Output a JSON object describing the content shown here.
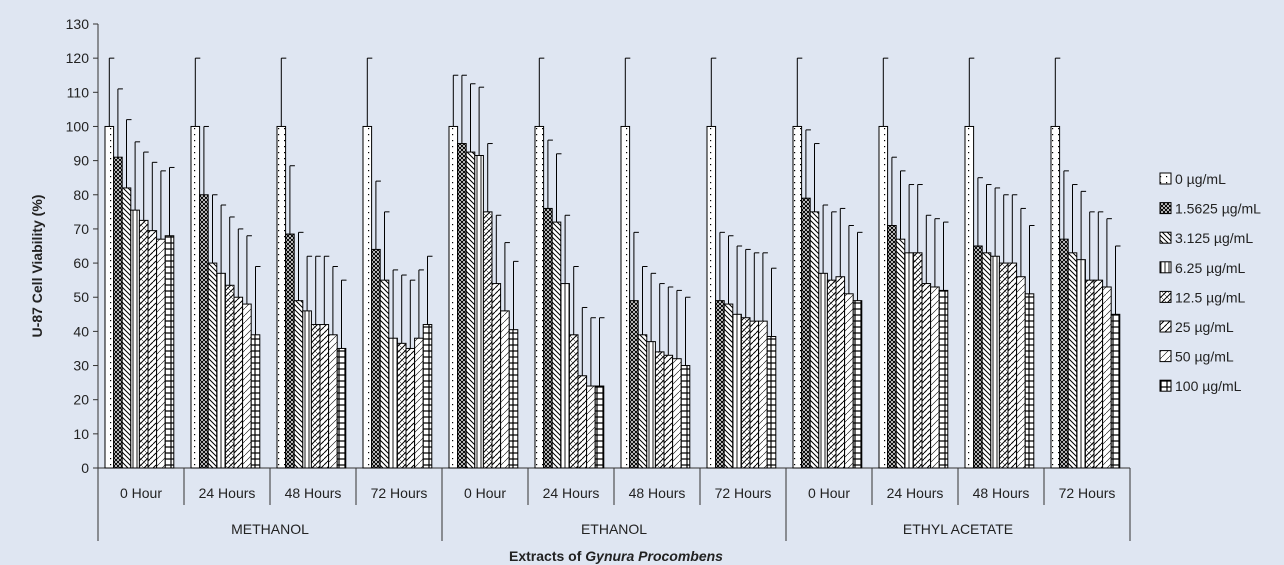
{
  "chart_data": {
    "type": "bar",
    "ylabel": "U-87 Cell Viability (%)",
    "xlabel": "Extracts of",
    "xlabel_italic": "Gynura Procombens",
    "ylim": [
      0,
      130
    ],
    "yticks": [
      0,
      10,
      20,
      30,
      40,
      50,
      60,
      70,
      80,
      90,
      100,
      110,
      120,
      130
    ],
    "legend_position": "right",
    "groups": [
      {
        "name": "METHANOL",
        "categories": [
          "0 Hour",
          "24 Hours",
          "48 Hours",
          "72 Hours"
        ]
      },
      {
        "name": "ETHANOL",
        "categories": [
          "0 Hour",
          "24 Hours",
          "48 Hours",
          "72 Hours"
        ]
      },
      {
        "name": "ETHYL ACETATE",
        "categories": [
          "0 Hour",
          "24 Hours",
          "48 Hours",
          "72 Hours"
        ]
      }
    ],
    "series": [
      {
        "name": "0 µg/mL",
        "values": [
          100,
          100,
          100,
          100,
          100,
          100,
          100,
          100,
          100,
          100,
          100,
          100
        ],
        "errors": [
          20,
          20,
          20,
          20,
          15,
          20,
          20,
          20,
          20,
          20,
          20,
          20
        ]
      },
      {
        "name": "1.5625 µg/mL",
        "values": [
          91,
          80,
          68.5,
          64,
          95,
          76,
          49,
          49,
          79,
          71,
          65,
          67
        ],
        "errors": [
          20,
          20,
          20,
          20,
          20,
          20,
          20,
          20,
          20,
          20,
          20,
          20
        ]
      },
      {
        "name": "3.125 µg/mL",
        "values": [
          82,
          60,
          49,
          55,
          92.5,
          72,
          39,
          48,
          75,
          67,
          63,
          63
        ],
        "errors": [
          20,
          20,
          20,
          20,
          20,
          20,
          20,
          20,
          20,
          20,
          20,
          20
        ]
      },
      {
        "name": "6.25 µg/mL",
        "values": [
          75.5,
          57,
          46,
          38,
          91.5,
          54,
          37,
          45,
          57,
          63,
          62,
          61
        ],
        "errors": [
          20,
          20,
          16,
          20,
          20,
          20,
          20,
          20,
          20,
          20,
          20,
          20
        ]
      },
      {
        "name": "12.5 µg/mL",
        "values": [
          72.5,
          53.5,
          42,
          36.5,
          75,
          39,
          34,
          44,
          55,
          63,
          60,
          55
        ],
        "errors": [
          20,
          20,
          20,
          20,
          20,
          20,
          20,
          20,
          20,
          20,
          20,
          20
        ]
      },
      {
        "name": "25 µg/mL",
        "values": [
          69.5,
          50,
          42,
          35,
          54,
          27,
          33,
          43,
          56,
          54,
          60,
          55
        ],
        "errors": [
          20,
          20,
          20,
          20,
          20,
          20,
          20,
          20,
          20,
          20,
          20,
          20
        ]
      },
      {
        "name": "50 µg/mL",
        "values": [
          67,
          48,
          39,
          38,
          46,
          24,
          32,
          43,
          51,
          53,
          56,
          53
        ],
        "errors": [
          20,
          20,
          20,
          20,
          20,
          20,
          20,
          20,
          20,
          20,
          20,
          20
        ]
      },
      {
        "name": "100 µg/mL",
        "values": [
          68,
          39,
          35,
          42,
          40.5,
          24,
          30,
          38.5,
          49,
          52,
          51,
          45
        ],
        "errors": [
          20,
          20,
          20,
          20,
          20,
          20,
          20,
          20,
          20,
          20,
          20,
          20
        ]
      }
    ]
  }
}
